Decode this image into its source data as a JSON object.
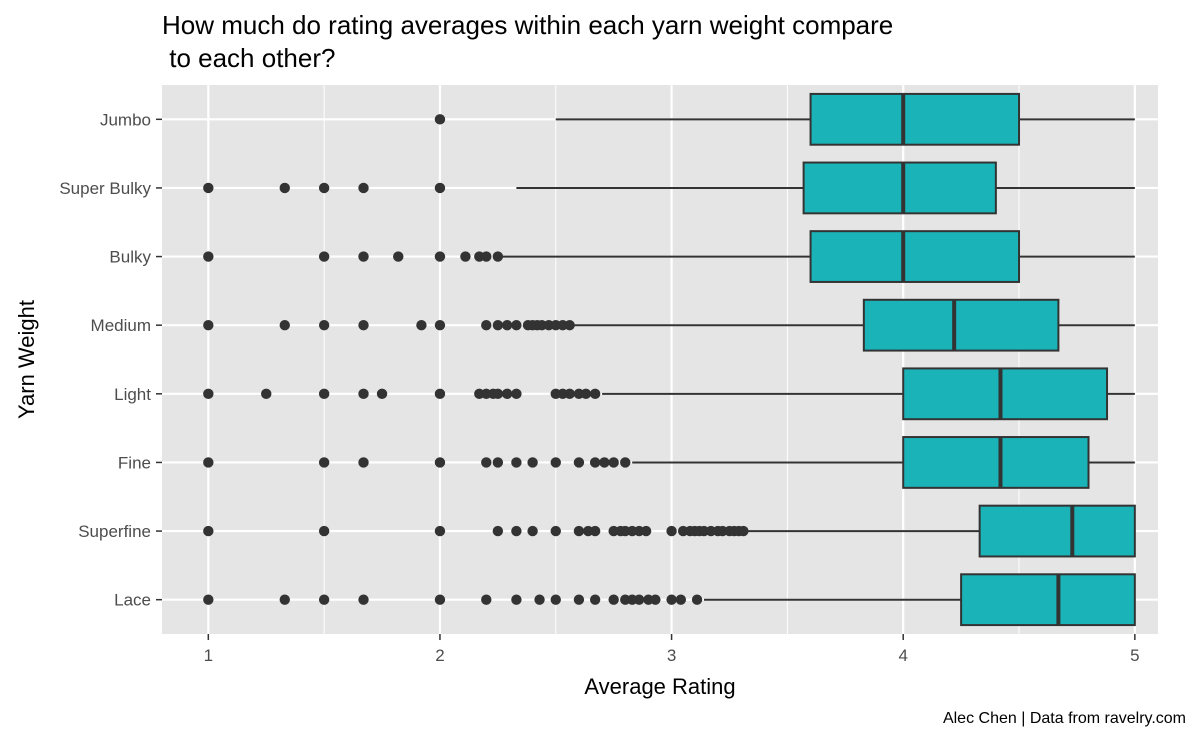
{
  "chart_data": {
    "type": "boxplot",
    "title_lines": [
      "How much do rating averages within each yarn weight compare",
      " to each other?"
    ],
    "xlabel": "Average Rating",
    "ylabel": "Yarn Weight",
    "caption": "Alec Chen | Data from ravelry.com",
    "xlim": [
      0.8,
      5.1
    ],
    "x_ticks": [
      1,
      2,
      3,
      4,
      5
    ],
    "x_tick_labels": [
      "1",
      "2",
      "3",
      "4",
      "5"
    ],
    "grid": true,
    "legend": "none",
    "box_fill": "#1AB3B8",
    "box_stroke": "#333333",
    "point_color": "#333333",
    "panel_background": "#E5E5E5",
    "grid_color": "#FFFFFF",
    "categories": [
      "Jumbo",
      "Super Bulky",
      "Bulky",
      "Medium",
      "Light",
      "Fine",
      "Superfine",
      "Lace"
    ],
    "series": [
      {
        "category": "Jumbo",
        "whisker_low": 2.5,
        "q1": 3.6,
        "median": 4.0,
        "q3": 4.5,
        "whisker_high": 5.0,
        "outliers": [
          2.0
        ]
      },
      {
        "category": "Super Bulky",
        "whisker_low": 2.33,
        "q1": 3.57,
        "median": 4.0,
        "q3": 4.4,
        "whisker_high": 5.0,
        "outliers": [
          1.0,
          1.33,
          1.5,
          1.67,
          2.0
        ]
      },
      {
        "category": "Bulky",
        "whisker_low": 2.27,
        "q1": 3.6,
        "median": 4.0,
        "q3": 4.5,
        "whisker_high": 5.0,
        "outliers": [
          1.0,
          1.5,
          1.67,
          1.82,
          2.0,
          2.11,
          2.17,
          2.2,
          2.25
        ]
      },
      {
        "category": "Medium",
        "whisker_low": 2.58,
        "q1": 3.83,
        "median": 4.22,
        "q3": 4.67,
        "whisker_high": 5.0,
        "outliers": [
          1.0,
          1.33,
          1.5,
          1.67,
          1.92,
          2.0,
          2.2,
          2.25,
          2.29,
          2.33,
          2.38,
          2.4,
          2.42,
          2.44,
          2.47,
          2.5,
          2.53,
          2.56
        ]
      },
      {
        "category": "Light",
        "whisker_low": 2.7,
        "q1": 4.0,
        "median": 4.42,
        "q3": 4.88,
        "whisker_high": 5.0,
        "outliers": [
          1.0,
          1.25,
          1.5,
          1.67,
          1.75,
          2.0,
          2.17,
          2.2,
          2.23,
          2.25,
          2.29,
          2.33,
          2.5,
          2.53,
          2.56,
          2.6,
          2.63,
          2.67
        ]
      },
      {
        "category": "Fine",
        "whisker_low": 2.83,
        "q1": 4.0,
        "median": 4.42,
        "q3": 4.8,
        "whisker_high": 5.0,
        "outliers": [
          1.0,
          1.5,
          1.67,
          2.0,
          2.2,
          2.25,
          2.33,
          2.4,
          2.5,
          2.6,
          2.67,
          2.71,
          2.75,
          2.8
        ]
      },
      {
        "category": "Superfine",
        "whisker_low": 3.33,
        "q1": 4.33,
        "median": 4.73,
        "q3": 5.0,
        "whisker_high": 5.0,
        "outliers": [
          1.0,
          1.5,
          2.0,
          2.25,
          2.33,
          2.4,
          2.5,
          2.6,
          2.64,
          2.67,
          2.75,
          2.78,
          2.8,
          2.83,
          2.86,
          2.89,
          3.0,
          3.05,
          3.08,
          3.1,
          3.12,
          3.14,
          3.17,
          3.2,
          3.22,
          3.25,
          3.27,
          3.29,
          3.31
        ]
      },
      {
        "category": "Lace",
        "whisker_low": 3.14,
        "q1": 4.25,
        "median": 4.67,
        "q3": 5.0,
        "whisker_high": 5.0,
        "outliers": [
          1.0,
          1.33,
          1.5,
          1.67,
          2.0,
          2.2,
          2.33,
          2.43,
          2.5,
          2.6,
          2.67,
          2.75,
          2.8,
          2.83,
          2.86,
          2.9,
          2.93,
          3.0,
          3.04,
          3.11
        ]
      }
    ]
  }
}
